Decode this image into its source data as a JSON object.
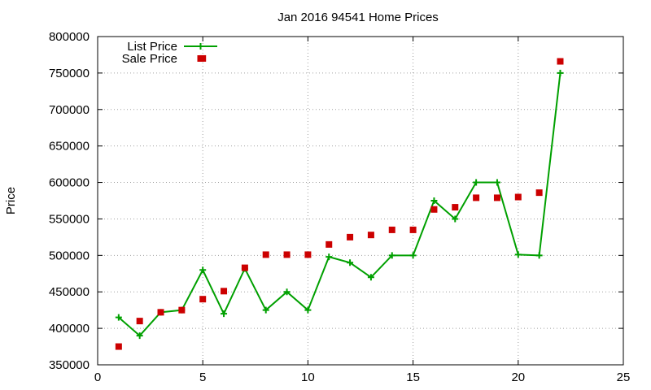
{
  "chart_data": {
    "type": "line",
    "title": "Jan 2016 94541 Home Prices",
    "xlabel": "",
    "ylabel": "Price",
    "xlim": [
      0,
      25
    ],
    "ylim": [
      350000,
      800000
    ],
    "xticks": [
      0,
      5,
      10,
      15,
      20,
      25
    ],
    "yticks": [
      350000,
      400000,
      450000,
      500000,
      550000,
      600000,
      650000,
      700000,
      750000,
      800000
    ],
    "grid": true,
    "legend_position": "top-left",
    "series": [
      {
        "name": "List Price",
        "style": "line+points",
        "color": "#00a000",
        "x": [
          1,
          2,
          3,
          4,
          5,
          6,
          7,
          8,
          9,
          10,
          11,
          12,
          13,
          14,
          15,
          16,
          17,
          18,
          19,
          20,
          21,
          22
        ],
        "values": [
          415000,
          390000,
          422000,
          425000,
          480000,
          420000,
          482000,
          425000,
          450000,
          425000,
          498000,
          490000,
          470000,
          500000,
          500000,
          575000,
          550000,
          600000,
          600000,
          501000,
          500000,
          750000
        ]
      },
      {
        "name": "Sale Price",
        "style": "points",
        "color": "#cc0000",
        "x": [
          1,
          2,
          3,
          4,
          5,
          5,
          6,
          7,
          8,
          9,
          10,
          11,
          12,
          13,
          14,
          15,
          16,
          17,
          18,
          19,
          20,
          21,
          22
        ],
        "values": [
          375000,
          410000,
          422000,
          425000,
          770000,
          440000,
          451000,
          483000,
          501000,
          501000,
          501000,
          515000,
          525000,
          528000,
          535000,
          535000,
          563000,
          566000,
          579000,
          579000,
          580000,
          586000,
          766000
        ]
      }
    ]
  }
}
